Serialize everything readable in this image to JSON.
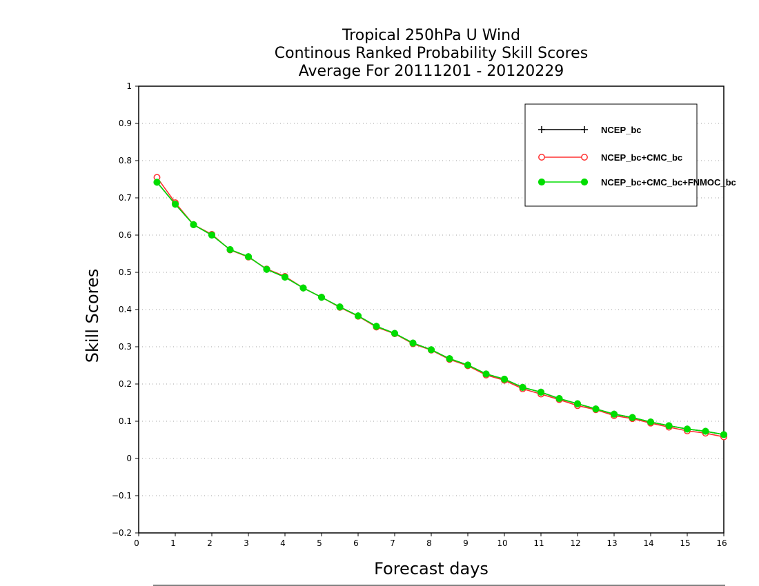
{
  "chart_data": {
    "type": "line",
    "title_lines": [
      "Tropical 250hPa U Wind",
      "Continous Ranked Probability Skill Scores",
      "Average For 20111201 - 20120229"
    ],
    "xlabel": "Forecast days",
    "ylabel": "Skill Scores",
    "xlim": [
      0,
      16
    ],
    "ylim": [
      -0.2,
      1
    ],
    "x_ticks": [
      "0",
      "1",
      "2",
      "3",
      "4",
      "5",
      "6",
      "7",
      "8",
      "9",
      "10",
      "11",
      "12",
      "13",
      "14",
      "15",
      "16"
    ],
    "y_ticks": [
      "−0.2",
      "−0.1",
      "0",
      "0.1",
      "0.2",
      "0.3",
      "0.4",
      "0.5",
      "0.6",
      "0.7",
      "0.8",
      "0.9",
      "1"
    ],
    "grid": "horizontal dotted",
    "legend_position": "top-right",
    "x": [
      0.5,
      1,
      1.5,
      2,
      2.5,
      3,
      3.5,
      4,
      4.5,
      5,
      5.5,
      6,
      6.5,
      7,
      7.5,
      8,
      8.5,
      9,
      9.5,
      10,
      10.5,
      11,
      11.5,
      12,
      12.5,
      13,
      13.5,
      14,
      14.5,
      15,
      15.5,
      16
    ],
    "series": [
      {
        "name": "NCEP_bc",
        "color": "#000000",
        "marker": "plus",
        "values": [
          0.742,
          0.683,
          0.628,
          0.6,
          0.561,
          0.542,
          0.508,
          0.487,
          0.458,
          0.433,
          0.407,
          0.383,
          0.355,
          0.336,
          0.31,
          0.292,
          0.268,
          0.251,
          0.227,
          0.213,
          0.191,
          0.178,
          0.161,
          0.147,
          0.133,
          0.119,
          0.11,
          0.098,
          0.088,
          0.079,
          0.073,
          0.064
        ]
      },
      {
        "name": "NCEP_bc+CMC_bc",
        "color": "#ff3030",
        "marker": "open-circle",
        "values": [
          0.755,
          0.687,
          0.628,
          0.602,
          0.56,
          0.541,
          0.509,
          0.489,
          0.458,
          0.433,
          0.406,
          0.382,
          0.353,
          0.335,
          0.308,
          0.291,
          0.266,
          0.249,
          0.224,
          0.21,
          0.187,
          0.173,
          0.158,
          0.142,
          0.131,
          0.115,
          0.107,
          0.095,
          0.084,
          0.074,
          0.068,
          0.058
        ]
      },
      {
        "name": "NCEP_bc+CMC_bc+FNMOC_bc",
        "color": "#00dd00",
        "marker": "filled-circle",
        "values": [
          0.742,
          0.683,
          0.628,
          0.6,
          0.561,
          0.542,
          0.508,
          0.487,
          0.458,
          0.433,
          0.407,
          0.383,
          0.355,
          0.336,
          0.31,
          0.292,
          0.268,
          0.251,
          0.227,
          0.213,
          0.191,
          0.178,
          0.161,
          0.147,
          0.133,
          0.119,
          0.11,
          0.098,
          0.088,
          0.079,
          0.073,
          0.064
        ]
      }
    ]
  }
}
